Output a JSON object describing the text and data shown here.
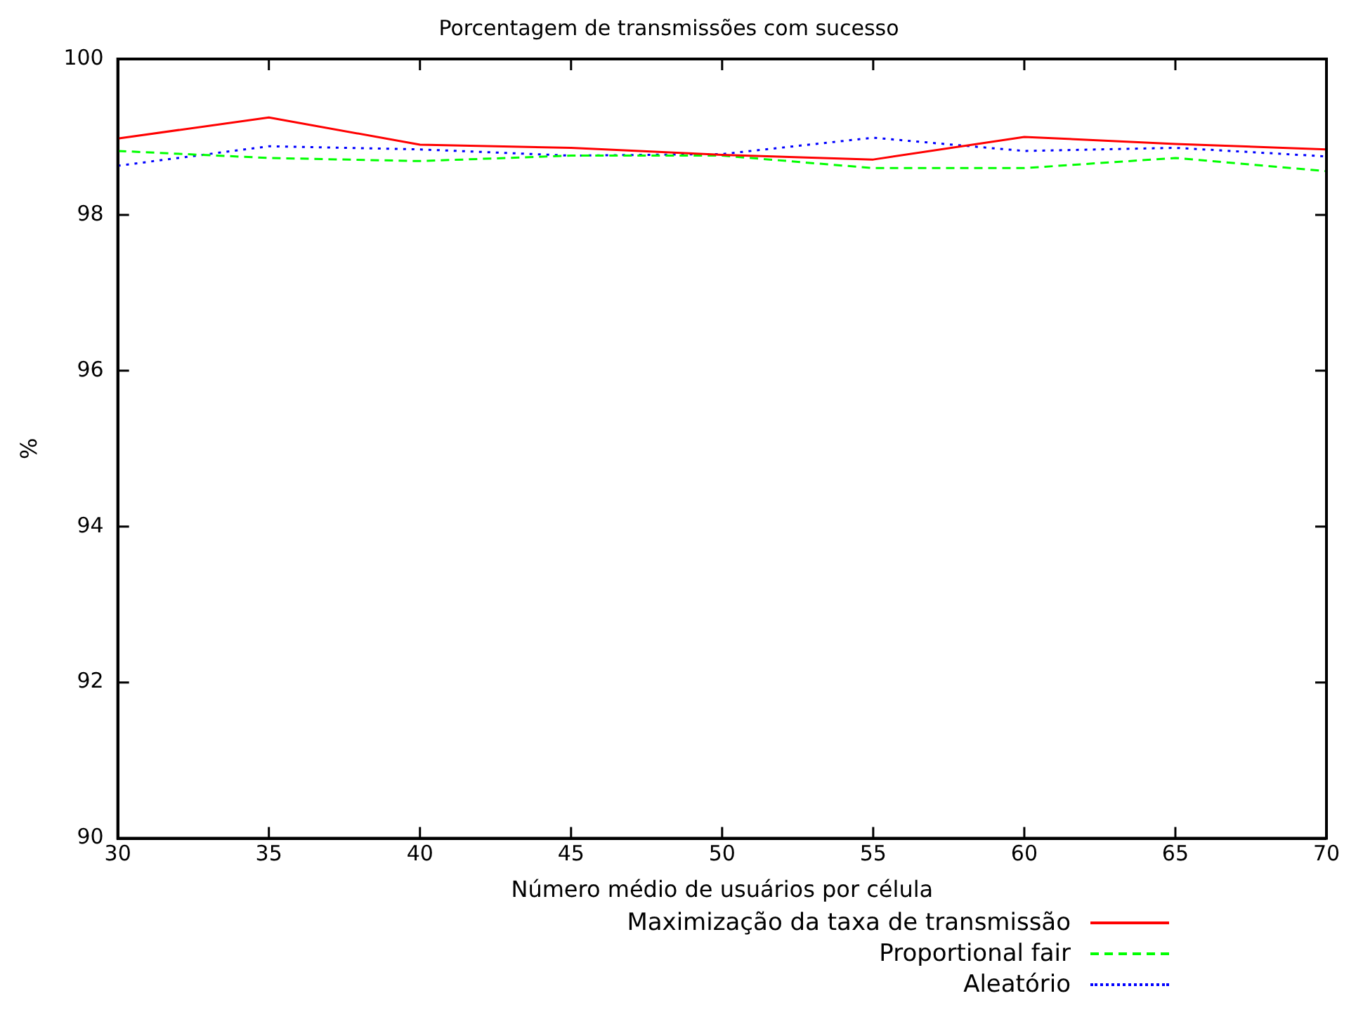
{
  "chart_data": {
    "type": "line",
    "title": "Porcentagem de transmissões com sucesso",
    "xlabel": "Número médio de usuários por célula",
    "ylabel": "%",
    "x": [
      30,
      35,
      40,
      45,
      50,
      55,
      60,
      65,
      70
    ],
    "xlim": [
      30,
      70
    ],
    "xticks": [
      30,
      35,
      40,
      45,
      50,
      55,
      60,
      65,
      70
    ],
    "ylim": [
      90,
      100
    ],
    "yticks": [
      90,
      92,
      94,
      96,
      98,
      100
    ],
    "grid": false,
    "legend": "bottom right",
    "marker": "none",
    "series": [
      {
        "name": "Maximização da taxa de transmissão",
        "color": "#ff0000",
        "line_style": "solid",
        "values": [
          98.98,
          99.25,
          98.9,
          98.86,
          98.77,
          98.71,
          99.0,
          98.91,
          98.84
        ]
      },
      {
        "name": "Proportional fair",
        "color": "#00ff00",
        "line_style": "dashed",
        "values": [
          98.82,
          98.73,
          98.69,
          98.76,
          98.76,
          98.6,
          98.6,
          98.73,
          98.56
        ]
      },
      {
        "name": "Aleatório",
        "color": "#0000ff",
        "line_style": "dotted",
        "values": [
          98.63,
          98.88,
          98.84,
          98.76,
          98.78,
          98.99,
          98.82,
          98.86,
          98.75
        ]
      }
    ]
  }
}
